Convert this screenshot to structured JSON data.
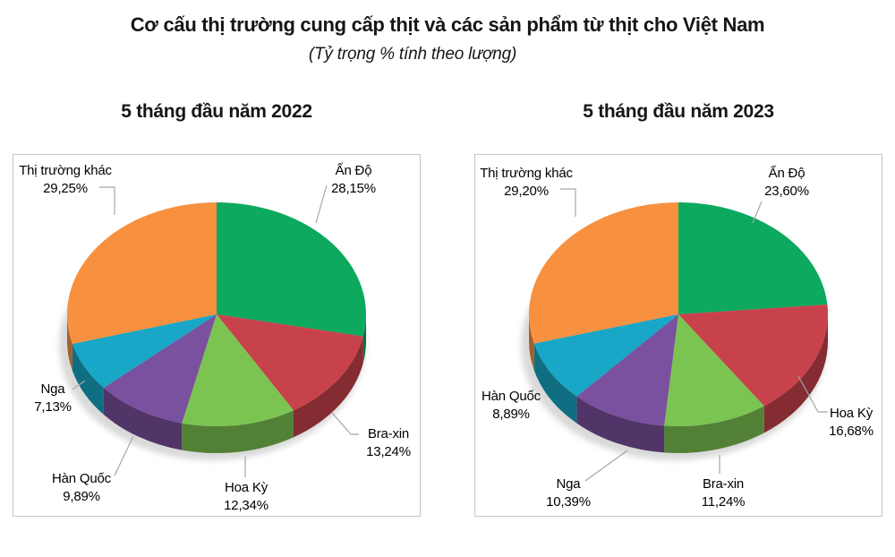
{
  "page": {
    "title": "Cơ cấu thị trường cung cấp thịt và các sản phẩm từ thịt cho Việt Nam",
    "subtitle": "(Tỷ trọng % tính theo lượng)"
  },
  "chart_data": [
    {
      "type": "pie",
      "style": "3d",
      "title": "5 tháng đầu năm 2022",
      "value_unit": "%",
      "start_angle_deg": 0,
      "direction": "clockwise",
      "slices": [
        {
          "label": "Ấn Độ",
          "value": 28.15,
          "display": "28,15%",
          "color": "#0ca95e"
        },
        {
          "label": "Bra-xin",
          "value": 13.24,
          "display": "13,24%",
          "color": "#c8424c"
        },
        {
          "label": "Hoa Kỳ",
          "value": 12.34,
          "display": "12,34%",
          "color": "#7cc452"
        },
        {
          "label": "Hàn Quốc",
          "value": 9.89,
          "display": "9,89%",
          "color": "#7a519e"
        },
        {
          "label": "Nga",
          "value": 7.13,
          "display": "7,13%",
          "color": "#18a7c7"
        },
        {
          "label": "Thị trường khác",
          "value": 29.25,
          "display": "29,25%",
          "color": "#f79140"
        }
      ]
    },
    {
      "type": "pie",
      "style": "3d",
      "title": "5 tháng đầu năm 2023",
      "value_unit": "%",
      "start_angle_deg": 0,
      "direction": "clockwise",
      "slices": [
        {
          "label": "Ấn Độ",
          "value": 23.6,
          "display": "23,60%",
          "color": "#0ca95e"
        },
        {
          "label": "Hoa Kỳ",
          "value": 16.68,
          "display": "16,68%",
          "color": "#c8424c"
        },
        {
          "label": "Bra-xin",
          "value": 11.24,
          "display": "11,24%",
          "color": "#7cc452"
        },
        {
          "label": "Nga",
          "value": 10.39,
          "display": "10,39%",
          "color": "#7a519e"
        },
        {
          "label": "Hàn Quốc",
          "value": 8.89,
          "display": "8,89%",
          "color": "#18a7c7"
        },
        {
          "label": "Thị trường khác",
          "value": 29.2,
          "display": "29,20%",
          "color": "#f79140"
        }
      ]
    }
  ]
}
